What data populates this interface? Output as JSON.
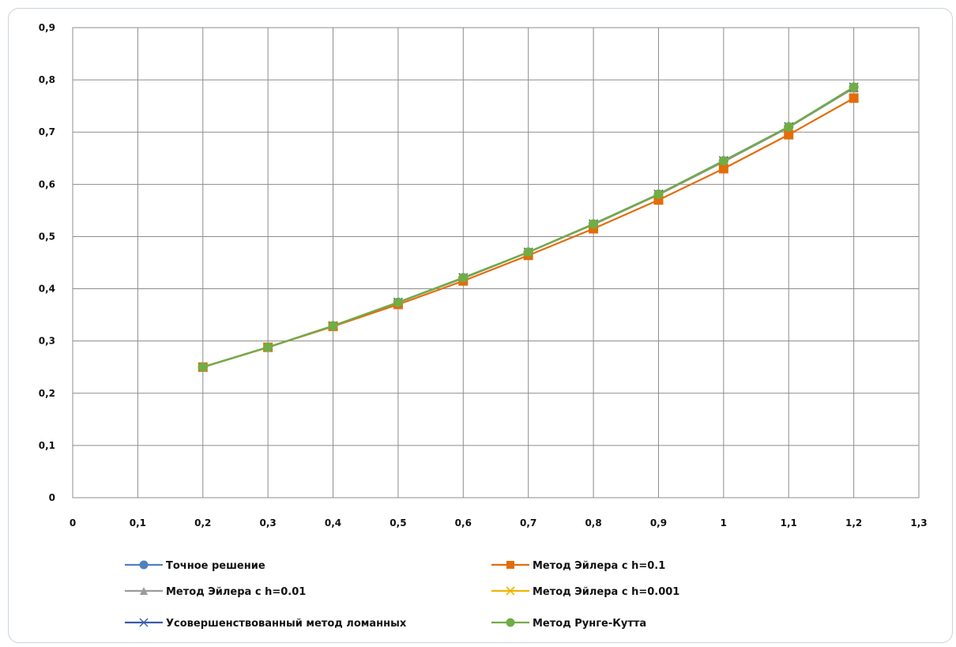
{
  "chart_data": {
    "type": "line",
    "title": "",
    "xlabel": "",
    "ylabel": "",
    "xlim": [
      0,
      1.3
    ],
    "ylim": [
      0,
      0.9
    ],
    "grid": true,
    "legend_position": "bottom",
    "x_ticks": [
      "0",
      "0,1",
      "0,2",
      "0,3",
      "0,4",
      "0,5",
      "0,6",
      "0,7",
      "0,8",
      "0,9",
      "1",
      "1,1",
      "1,2",
      "1,3"
    ],
    "y_ticks": [
      "0",
      "0,1",
      "0,2",
      "0,3",
      "0,4",
      "0,5",
      "0,6",
      "0,7",
      "0,8",
      "0,9"
    ],
    "x": [
      0.2,
      0.3,
      0.4,
      0.5,
      0.6,
      0.7,
      0.8,
      0.9,
      1.0,
      1.1,
      1.2
    ],
    "series": [
      {
        "name": "Точное решение",
        "color": "#4f81bd",
        "marker": "circle",
        "values": [
          0.25,
          0.288,
          0.329,
          0.374,
          0.421,
          0.47,
          0.524,
          0.581,
          0.645,
          0.71,
          0.786
        ]
      },
      {
        "name": "Метод Эйлера с h=0.1",
        "color": "#e46c0a",
        "marker": "square",
        "values": [
          0.25,
          0.288,
          0.328,
          0.37,
          0.415,
          0.464,
          0.515,
          0.57,
          0.63,
          0.695,
          0.765
        ]
      },
      {
        "name": "Метод Эйлера с h=0.01",
        "color": "#9b9b9b",
        "marker": "triangle",
        "values": [
          0.25,
          0.288,
          0.329,
          0.374,
          0.42,
          0.47,
          0.523,
          0.58,
          0.643,
          0.709,
          0.784
        ]
      },
      {
        "name": "Метод Эйлера с h=0.001",
        "color": "#f0b400",
        "marker": "x",
        "values": [
          0.25,
          0.288,
          0.329,
          0.374,
          0.421,
          0.47,
          0.524,
          0.581,
          0.645,
          0.71,
          0.786
        ]
      },
      {
        "name": "Усовершенствованный метод ломанных",
        "color": "#3b5ba8",
        "marker": "star",
        "values": [
          0.25,
          0.288,
          0.329,
          0.374,
          0.421,
          0.47,
          0.524,
          0.581,
          0.645,
          0.71,
          0.786
        ]
      },
      {
        "name": "Метод Рунге-Кутта",
        "color": "#70ad47",
        "marker": "circle",
        "values": [
          0.25,
          0.288,
          0.329,
          0.374,
          0.421,
          0.47,
          0.524,
          0.581,
          0.645,
          0.71,
          0.786
        ]
      }
    ]
  }
}
